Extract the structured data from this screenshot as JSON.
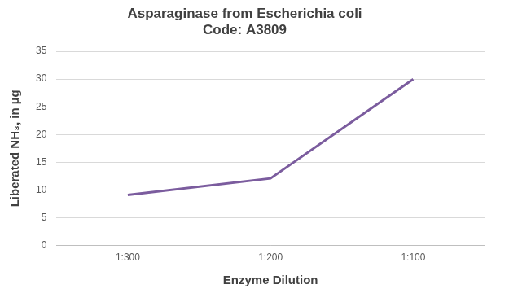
{
  "chart_data": {
    "type": "line",
    "title": [
      "Asparaginase from Escherichia coli",
      "Code: A3809"
    ],
    "x_label": "Enzyme Dilution",
    "y_label": "Liberated NH₃, in µg",
    "categories": [
      "1:300",
      "1:200",
      "1:100"
    ],
    "values": [
      9.1,
      12.1,
      30
    ],
    "color": "#7b5c9e",
    "ylim": [
      0,
      35
    ],
    "yticks": [
      0,
      5,
      10,
      15,
      20,
      25,
      30,
      35
    ],
    "grid": true
  }
}
